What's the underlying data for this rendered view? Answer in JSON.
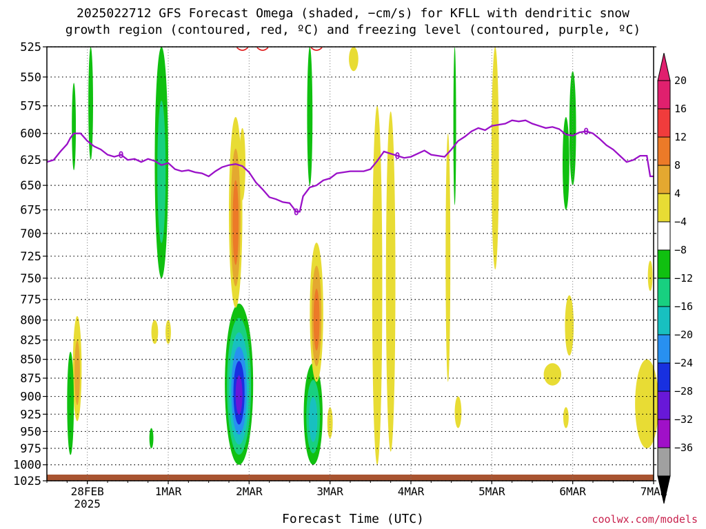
{
  "title_line1": "2025022712 GFS Forecast Omega (shaded, −cm/s) for KFLL with dendritic snow",
  "title_line2": "growth region (contoured, red, ºC) and freezing level (contoured, purple, ºC)",
  "credit": "coolwx.com/models",
  "chart_data": {
    "type": "heatmap",
    "title": "2025022712 GFS Forecast Omega (shaded, −cm/s) for KFLL with dendritic snow growth region (contoured, red, ºC) and freezing level (contoured, purple, ºC)",
    "xlabel": "Forecast Time (UTC)",
    "ylabel": "",
    "x_unit": "forecast hour from 2025-02-27 12Z",
    "xlim": [
      0,
      180
    ],
    "ylim": [
      1025,
      525
    ],
    "y_ticks": [
      525,
      550,
      575,
      600,
      625,
      650,
      675,
      700,
      725,
      750,
      775,
      800,
      825,
      850,
      875,
      900,
      925,
      950,
      975,
      1000,
      1025
    ],
    "x_ticks": [
      {
        "label": "28FEB",
        "sublabel": "2025",
        "hour": 12
      },
      {
        "label": "1MAR",
        "sublabel": "",
        "hour": 36
      },
      {
        "label": "2MAR",
        "sublabel": "",
        "hour": 60
      },
      {
        "label": "3MAR",
        "sublabel": "",
        "hour": 84
      },
      {
        "label": "4MAR",
        "sublabel": "",
        "hour": 108
      },
      {
        "label": "5MAR",
        "sublabel": "",
        "hour": 132
      },
      {
        "label": "6MAR",
        "sublabel": "",
        "hour": 156
      },
      {
        "label": "7MAR",
        "sublabel": "",
        "hour": 180
      }
    ],
    "grid": true,
    "colorbar": {
      "labels": [
        "20",
        "16",
        "12",
        "8",
        "4",
        "−4",
        "−8",
        "−12",
        "−16",
        "−20",
        "−24",
        "−28",
        "−32",
        "−36"
      ],
      "colors": [
        "#e0206e",
        "#f03c3c",
        "#ec7a28",
        "#e4a830",
        "#e8dc34",
        "#ffffff",
        "#10c010",
        "#18d080",
        "#18c0c0",
        "#2890f0",
        "#1830e0",
        "#6818d8",
        "#a010c8",
        "#a0a0a0"
      ],
      "top_triangle": "#e0206e",
      "bottom_triangle": "#000000"
    },
    "freezing_level": {
      "name": "freezing level",
      "color": "#9a10c8",
      "contour_label": "0",
      "points": [
        [
          0,
          627
        ],
        [
          2,
          625
        ],
        [
          4,
          617
        ],
        [
          6,
          610
        ],
        [
          7,
          604
        ],
        [
          8,
          600
        ],
        [
          10,
          600
        ],
        [
          12,
          607
        ],
        [
          14,
          612
        ],
        [
          16,
          615
        ],
        [
          18,
          620
        ],
        [
          20,
          622
        ],
        [
          22,
          620
        ],
        [
          24,
          625
        ],
        [
          26,
          624
        ],
        [
          28,
          627
        ],
        [
          30,
          624
        ],
        [
          32,
          626
        ],
        [
          34,
          630
        ],
        [
          36,
          628
        ],
        [
          38,
          634
        ],
        [
          40,
          636
        ],
        [
          42,
          635
        ],
        [
          44,
          637
        ],
        [
          46,
          638
        ],
        [
          48,
          641
        ],
        [
          50,
          636
        ],
        [
          52,
          632
        ],
        [
          54,
          630
        ],
        [
          56,
          629
        ],
        [
          58,
          631
        ],
        [
          60,
          637
        ],
        [
          62,
          647
        ],
        [
          64,
          654
        ],
        [
          66,
          662
        ],
        [
          68,
          664
        ],
        [
          70,
          667
        ],
        [
          72,
          668
        ],
        [
          74,
          677
        ],
        [
          75,
          677
        ],
        [
          76,
          661
        ],
        [
          78,
          652
        ],
        [
          80,
          650
        ],
        [
          82,
          645
        ],
        [
          84,
          643
        ],
        [
          86,
          638
        ],
        [
          88,
          637
        ],
        [
          90,
          636
        ],
        [
          92,
          636
        ],
        [
          94,
          636
        ],
        [
          96,
          634
        ],
        [
          98,
          626
        ],
        [
          100,
          617
        ],
        [
          102,
          619
        ],
        [
          104,
          621
        ],
        [
          106,
          623
        ],
        [
          108,
          622
        ],
        [
          110,
          619
        ],
        [
          112,
          616
        ],
        [
          114,
          620
        ],
        [
          116,
          621
        ],
        [
          118,
          622
        ],
        [
          120,
          615
        ],
        [
          122,
          607
        ],
        [
          124,
          603
        ],
        [
          126,
          598
        ],
        [
          128,
          595
        ],
        [
          130,
          597
        ],
        [
          132,
          593
        ],
        [
          134,
          592
        ],
        [
          136,
          591
        ],
        [
          138,
          588
        ],
        [
          140,
          589
        ],
        [
          142,
          588
        ],
        [
          144,
          591
        ],
        [
          146,
          593
        ],
        [
          148,
          595
        ],
        [
          150,
          594
        ],
        [
          152,
          596
        ],
        [
          154,
          601
        ],
        [
          156,
          602
        ],
        [
          158,
          599
        ],
        [
          160,
          598
        ],
        [
          162,
          600
        ],
        [
          164,
          605
        ],
        [
          166,
          611
        ],
        [
          168,
          615
        ],
        [
          170,
          621
        ],
        [
          172,
          627
        ],
        [
          174,
          625
        ],
        [
          176,
          621
        ],
        [
          178,
          621
        ],
        [
          179,
          641
        ],
        [
          180,
          641
        ]
      ],
      "labels_at_hours": [
        22,
        74,
        104,
        160
      ]
    },
    "dgz_contour": {
      "name": "dendritic snow growth region",
      "color": "#e02020"
    },
    "omega_regions": [
      {
        "value": 8,
        "center_hour": 9,
        "center_p": 840,
        "note": "weak rising motion"
      },
      {
        "value": -8,
        "center_hour": 7,
        "center_p": 900,
        "note": "green near 28FEB"
      },
      {
        "value": -12,
        "center_hour": 35,
        "center_p": 620,
        "note": "green upper levels 1MAR"
      },
      {
        "value": -24,
        "center_hour": 57,
        "center_p": 900,
        "note": "strongest sinking near 2MAR"
      },
      {
        "value": 8,
        "center_hour": 56,
        "center_p": 680,
        "note": "rising 2MAR mid-levels"
      },
      {
        "value": -16,
        "center_hour": 79,
        "center_p": 920,
        "note": "sinking 3MAR"
      },
      {
        "value": 8,
        "center_hour": 79,
        "center_p": 780,
        "note": "rising 3MAR"
      },
      {
        "value": 4,
        "center_hour": 98,
        "center_p": 690,
        "note": "yellow band 4MAR"
      },
      {
        "value": 4,
        "center_hour": 133,
        "center_p": 650,
        "note": "yellow band 5MAR"
      },
      {
        "value": -8,
        "center_hour": 154,
        "center_p": 640,
        "note": "green 6MAR"
      },
      {
        "value": 4,
        "center_hour": 153,
        "center_p": 840,
        "note": "yellow 6MAR low levels"
      },
      {
        "value": 4,
        "center_hour": 177,
        "center_p": 910,
        "note": "yellow 7MAR low levels"
      }
    ]
  },
  "x_axis_title": "Forecast Time (UTC)"
}
